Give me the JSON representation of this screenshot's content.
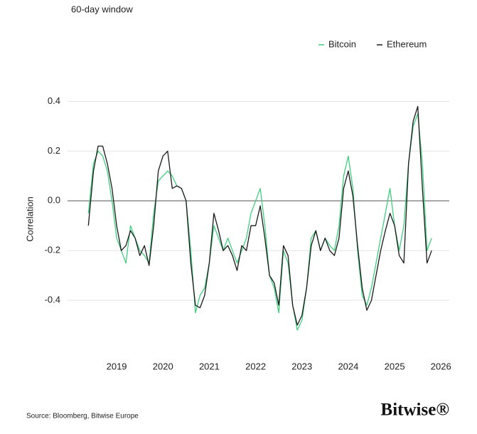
{
  "chart_data": {
    "type": "line",
    "subtitle": "60-day window",
    "ylabel": "Correlation",
    "source": "Source: Bloomberg, Bitwise Europe",
    "logo": "Bitwise®",
    "x": [
      2018.39,
      2018.5,
      2018.6,
      2018.7,
      2018.8,
      2018.9,
      2019.0,
      2019.1,
      2019.2,
      2019.3,
      2019.4,
      2019.5,
      2019.6,
      2019.7,
      2019.8,
      2019.9,
      2020.0,
      2020.1,
      2020.2,
      2020.3,
      2020.4,
      2020.5,
      2020.6,
      2020.7,
      2020.8,
      2020.9,
      2021.0,
      2021.1,
      2021.2,
      2021.3,
      2021.4,
      2021.5,
      2021.6,
      2021.7,
      2021.8,
      2021.9,
      2022.0,
      2022.1,
      2022.2,
      2022.3,
      2022.4,
      2022.5,
      2022.6,
      2022.7,
      2022.8,
      2022.9,
      2023.0,
      2023.1,
      2023.2,
      2023.3,
      2023.4,
      2023.5,
      2023.6,
      2023.7,
      2023.8,
      2023.9,
      2024.0,
      2024.1,
      2024.2,
      2024.3,
      2024.4,
      2024.5,
      2024.6,
      2024.7,
      2024.8,
      2024.9,
      2025.0,
      2025.1,
      2025.2,
      2025.3,
      2025.4,
      2025.5,
      2025.6,
      2025.7,
      2025.8
    ],
    "series": [
      {
        "name": "Bitcoin",
        "color": "#3ecf7e",
        "values": [
          -0.05,
          0.15,
          0.2,
          0.18,
          0.12,
          0.0,
          -0.15,
          -0.2,
          -0.25,
          -0.1,
          -0.15,
          -0.2,
          -0.22,
          -0.25,
          -0.05,
          0.08,
          0.1,
          0.12,
          0.1,
          0.06,
          0.05,
          0.0,
          -0.2,
          -0.45,
          -0.38,
          -0.35,
          -0.25,
          -0.1,
          -0.15,
          -0.2,
          -0.15,
          -0.2,
          -0.25,
          -0.2,
          -0.15,
          -0.05,
          0.0,
          0.05,
          -0.1,
          -0.3,
          -0.35,
          -0.45,
          -0.2,
          -0.25,
          -0.42,
          -0.52,
          -0.48,
          -0.35,
          -0.15,
          -0.12,
          -0.2,
          -0.15,
          -0.18,
          -0.2,
          -0.1,
          0.1,
          0.18,
          0.05,
          -0.2,
          -0.38,
          -0.42,
          -0.35,
          -0.25,
          -0.15,
          -0.05,
          0.05,
          -0.1,
          -0.2,
          -0.1,
          0.15,
          0.3,
          0.35,
          0.15,
          -0.2,
          -0.15
        ]
      },
      {
        "name": "Ethereum",
        "color": "#1a1a1a",
        "values": [
          -0.1,
          0.12,
          0.22,
          0.22,
          0.15,
          0.05,
          -0.1,
          -0.2,
          -0.18,
          -0.12,
          -0.15,
          -0.22,
          -0.18,
          -0.26,
          -0.1,
          0.12,
          0.18,
          0.2,
          0.05,
          0.06,
          0.05,
          0.0,
          -0.25,
          -0.42,
          -0.43,
          -0.38,
          -0.25,
          -0.05,
          -0.12,
          -0.2,
          -0.18,
          -0.22,
          -0.28,
          -0.18,
          -0.2,
          -0.1,
          -0.1,
          -0.02,
          -0.15,
          -0.3,
          -0.33,
          -0.42,
          -0.18,
          -0.22,
          -0.42,
          -0.5,
          -0.46,
          -0.35,
          -0.18,
          -0.12,
          -0.2,
          -0.15,
          -0.2,
          -0.22,
          -0.15,
          0.05,
          0.12,
          0.02,
          -0.18,
          -0.35,
          -0.44,
          -0.4,
          -0.3,
          -0.2,
          -0.12,
          -0.05,
          -0.1,
          -0.22,
          -0.25,
          0.15,
          0.32,
          0.38,
          0.05,
          -0.25,
          -0.2
        ]
      }
    ],
    "xlim": [
      2017.94,
      2026.18
    ],
    "xticks": [
      2019,
      2020,
      2021,
      2022,
      2023,
      2024,
      2025,
      2026
    ],
    "ylim": [
      -0.6,
      0.45
    ],
    "yticks": [
      0.4,
      0.2,
      {
        "value": 0,
        "label": "0.0"
      },
      -0.2,
      -0.4
    ],
    "grid": true
  }
}
